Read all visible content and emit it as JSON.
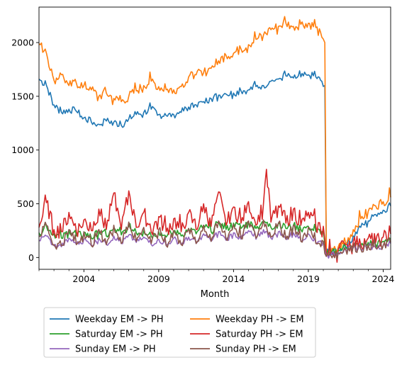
{
  "chart_data": {
    "type": "line",
    "title": "",
    "xlabel": "Month",
    "ylabel": "",
    "x_range": [
      2001.0,
      2024.5
    ],
    "ylim": [
      -110,
      2330
    ],
    "x_ticks": [
      2004,
      2009,
      2014,
      2019,
      2024
    ],
    "y_ticks": [
      0,
      500,
      1000,
      1500,
      2000
    ],
    "grid": false,
    "legend_position": "bottom-center",
    "series": [
      {
        "name": "Weekday EM -> PH",
        "color": "#1f77b4",
        "x": [
          2001.0,
          2001.5,
          2002.0,
          2002.5,
          2003.0,
          2003.5,
          2004.0,
          2004.5,
          2005.0,
          2005.5,
          2006.0,
          2006.5,
          2007.0,
          2007.5,
          2008.0,
          2008.5,
          2009.0,
          2009.5,
          2010.0,
          2010.5,
          2011.0,
          2011.5,
          2012.0,
          2012.5,
          2013.0,
          2013.5,
          2014.0,
          2014.5,
          2015.0,
          2015.5,
          2016.0,
          2016.5,
          2017.0,
          2017.5,
          2018.0,
          2018.5,
          2019.0,
          2019.5,
          2019.9,
          2020.1,
          2020.2,
          2020.5,
          2021.0,
          2021.5,
          2022.0,
          2022.5,
          2023.0,
          2023.5,
          2024.0,
          2024.5
        ],
        "y": [
          1660,
          1600,
          1420,
          1350,
          1380,
          1360,
          1300,
          1260,
          1240,
          1270,
          1260,
          1230,
          1290,
          1330,
          1350,
          1380,
          1330,
          1320,
          1330,
          1350,
          1400,
          1420,
          1450,
          1480,
          1510,
          1520,
          1530,
          1550,
          1560,
          1590,
          1600,
          1640,
          1660,
          1690,
          1670,
          1680,
          1700,
          1680,
          1640,
          1600,
          60,
          30,
          80,
          100,
          200,
          280,
          340,
          400,
          440,
          480
        ]
      },
      {
        "name": "Weekday PH -> EM",
        "color": "#ff7f0e",
        "x": [
          2001.0,
          2001.5,
          2002.0,
          2002.5,
          2003.0,
          2003.5,
          2004.0,
          2004.5,
          2005.0,
          2005.5,
          2006.0,
          2006.5,
          2007.0,
          2007.5,
          2008.0,
          2008.5,
          2009.0,
          2009.5,
          2010.0,
          2010.5,
          2011.0,
          2011.5,
          2012.0,
          2012.5,
          2013.0,
          2013.5,
          2014.0,
          2014.5,
          2015.0,
          2015.5,
          2016.0,
          2016.5,
          2017.0,
          2017.5,
          2018.0,
          2018.5,
          2019.0,
          2019.5,
          2019.9,
          2020.1,
          2020.2,
          2020.5,
          2021.0,
          2021.5,
          2022.0,
          2022.5,
          2023.0,
          2023.5,
          2024.0,
          2024.5
        ],
        "y": [
          1990,
          1900,
          1650,
          1700,
          1600,
          1620,
          1600,
          1560,
          1500,
          1530,
          1480,
          1450,
          1500,
          1550,
          1600,
          1640,
          1590,
          1560,
          1560,
          1590,
          1680,
          1700,
          1720,
          1760,
          1830,
          1880,
          1900,
          1940,
          1980,
          2030,
          2070,
          2120,
          2150,
          2180,
          2150,
          2170,
          2180,
          2140,
          2050,
          2000,
          70,
          40,
          100,
          130,
          260,
          360,
          430,
          480,
          520,
          560
        ]
      },
      {
        "name": "Saturday EM -> PH",
        "color": "#2ca02c",
        "x": [
          2001.0,
          2001.5,
          2002.0,
          2002.5,
          2003.0,
          2003.5,
          2004.0,
          2004.5,
          2005.0,
          2005.5,
          2006.0,
          2006.5,
          2007.0,
          2007.5,
          2008.0,
          2008.5,
          2009.0,
          2009.5,
          2010.0,
          2010.5,
          2011.0,
          2011.5,
          2012.0,
          2012.5,
          2013.0,
          2013.5,
          2014.0,
          2014.5,
          2015.0,
          2015.5,
          2016.0,
          2016.5,
          2017.0,
          2017.5,
          2018.0,
          2018.5,
          2019.0,
          2019.5,
          2020.0,
          2020.2,
          2020.5,
          2021.0,
          2021.5,
          2022.0,
          2022.5,
          2023.0,
          2023.5,
          2024.0,
          2024.5
        ],
        "y": [
          230,
          290,
          220,
          180,
          250,
          200,
          230,
          180,
          240,
          200,
          270,
          210,
          290,
          230,
          250,
          200,
          240,
          190,
          250,
          200,
          270,
          220,
          300,
          240,
          330,
          260,
          320,
          270,
          330,
          270,
          340,
          280,
          320,
          270,
          300,
          260,
          290,
          240,
          250,
          30,
          40,
          70,
          90,
          120,
          100,
          140,
          120,
          150,
          170
        ]
      },
      {
        "name": "Saturday PH -> EM",
        "color": "#d62728",
        "x": [
          2001.0,
          2001.5,
          2002.0,
          2002.5,
          2003.0,
          2003.5,
          2004.0,
          2004.5,
          2005.0,
          2005.5,
          2006.0,
          2006.5,
          2007.0,
          2007.5,
          2008.0,
          2008.5,
          2009.0,
          2009.5,
          2010.0,
          2010.5,
          2011.0,
          2011.5,
          2012.0,
          2012.5,
          2013.0,
          2013.5,
          2014.0,
          2014.5,
          2015.0,
          2015.5,
          2016.0,
          2016.2,
          2016.5,
          2017.0,
          2017.5,
          2018.0,
          2018.5,
          2019.0,
          2019.5,
          2020.0,
          2020.2,
          2020.5,
          2021.0,
          2021.5,
          2022.0,
          2022.5,
          2023.0,
          2023.5,
          2024.0,
          2024.5
        ],
        "y": [
          280,
          510,
          260,
          240,
          420,
          240,
          350,
          250,
          450,
          260,
          600,
          260,
          620,
          280,
          420,
          240,
          380,
          240,
          360,
          240,
          420,
          260,
          500,
          290,
          610,
          300,
          470,
          320,
          520,
          300,
          500,
          820,
          330,
          480,
          320,
          450,
          300,
          420,
          290,
          290,
          30,
          40,
          80,
          120,
          150,
          120,
          180,
          140,
          190,
          220
        ]
      },
      {
        "name": "Sunday EM -> PH",
        "color": "#9467bd",
        "x": [
          2001.0,
          2001.5,
          2002.0,
          2002.5,
          2003.0,
          2003.5,
          2004.0,
          2004.5,
          2005.0,
          2005.5,
          2006.0,
          2006.5,
          2007.0,
          2007.5,
          2008.0,
          2008.5,
          2009.0,
          2009.5,
          2010.0,
          2010.5,
          2011.0,
          2011.5,
          2012.0,
          2012.5,
          2013.0,
          2013.5,
          2014.0,
          2014.5,
          2015.0,
          2015.5,
          2016.0,
          2016.5,
          2017.0,
          2017.5,
          2018.0,
          2018.5,
          2019.0,
          2019.5,
          2020.0,
          2020.2,
          2020.5,
          2021.0,
          2021.5,
          2022.0,
          2022.5,
          2023.0,
          2023.5,
          2024.0,
          2024.5
        ],
        "y": [
          160,
          200,
          110,
          100,
          180,
          120,
          170,
          110,
          180,
          120,
          200,
          130,
          210,
          140,
          190,
          120,
          170,
          110,
          180,
          120,
          190,
          130,
          220,
          150,
          240,
          160,
          230,
          170,
          250,
          170,
          260,
          180,
          240,
          170,
          230,
          160,
          220,
          140,
          150,
          10,
          20,
          50,
          70,
          90,
          80,
          110,
          90,
          110,
          130
        ]
      },
      {
        "name": "Sunday PH -> EM",
        "color": "#8c564b",
        "x": [
          2001.0,
          2001.5,
          2002.0,
          2002.5,
          2003.0,
          2003.5,
          2004.0,
          2004.5,
          2005.0,
          2005.5,
          2006.0,
          2006.5,
          2007.0,
          2007.5,
          2008.0,
          2008.5,
          2009.0,
          2009.5,
          2010.0,
          2010.5,
          2011.0,
          2011.5,
          2012.0,
          2012.5,
          2013.0,
          2013.5,
          2014.0,
          2014.5,
          2015.0,
          2015.5,
          2016.0,
          2016.5,
          2017.0,
          2017.5,
          2018.0,
          2018.5,
          2019.0,
          2019.5,
          2020.0,
          2020.2,
          2020.5,
          2021.0,
          2021.5,
          2022.0,
          2022.5,
          2023.0,
          2023.5,
          2024.0,
          2024.5
        ],
        "y": [
          200,
          300,
          120,
          110,
          260,
          120,
          240,
          110,
          260,
          120,
          300,
          130,
          330,
          150,
          280,
          130,
          260,
          110,
          250,
          120,
          270,
          130,
          300,
          150,
          340,
          170,
          310,
          180,
          340,
          180,
          350,
          190,
          320,
          170,
          300,
          150,
          280,
          130,
          150,
          10,
          20,
          40,
          70,
          100,
          80,
          120,
          90,
          110,
          140
        ]
      }
    ]
  }
}
